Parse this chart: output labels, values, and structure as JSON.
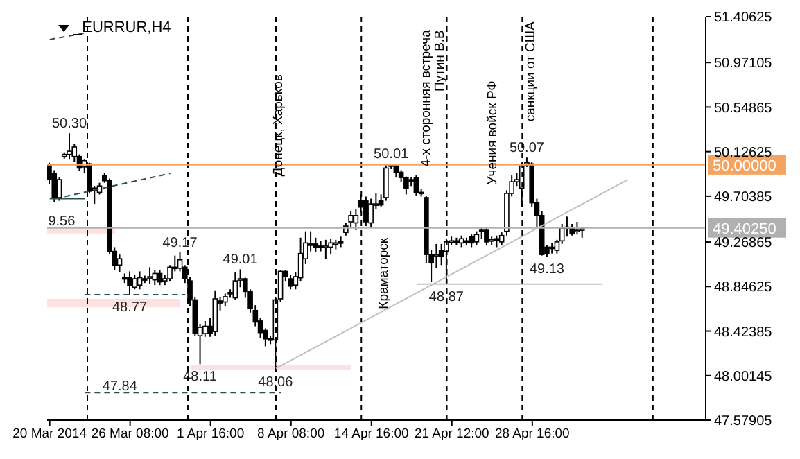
{
  "chart_data": {
    "type": "candlestick",
    "title": "_EURRUR,H4",
    "color": "#000000",
    "categories": [
      "20 Mar 2014",
      null,
      null,
      null,
      null,
      null,
      null,
      null,
      null,
      null,
      null,
      null,
      null,
      null,
      null,
      null,
      "26 Mar 08:00",
      null,
      null,
      null,
      null,
      null,
      null,
      null,
      null,
      null,
      null,
      null,
      null,
      null,
      null,
      null,
      "1 Apr 16:00",
      null,
      null,
      null,
      null,
      null,
      null,
      null,
      null,
      null,
      null,
      null,
      null,
      null,
      null,
      null,
      "8 Apr 08:00",
      null,
      null,
      null,
      null,
      null,
      null,
      null,
      null,
      null,
      null,
      null,
      null,
      null,
      null,
      null,
      "14 Apr 16:00",
      null,
      null,
      null,
      null,
      null,
      null,
      null,
      null,
      null,
      null,
      null,
      null,
      null,
      null,
      null,
      "21 Apr 12:00",
      null,
      null,
      null,
      null,
      null,
      null,
      null,
      null,
      null,
      null,
      null,
      null,
      null,
      null,
      null,
      "28 Apr 16:00",
      null,
      null,
      null,
      null,
      null,
      null,
      null,
      null,
      null,
      null,
      null,
      null,
      null,
      null,
      null,
      null,
      null,
      null,
      null,
      null,
      null,
      null,
      null,
      null,
      null,
      null,
      null,
      null,
      null,
      null,
      null,
      null,
      null,
      null
    ],
    "ohlc": [
      [
        50.0,
        50.02,
        49.82,
        49.86
      ],
      [
        49.92,
        49.95,
        49.65,
        49.69
      ],
      [
        49.69,
        49.88,
        49.66,
        49.86
      ],
      [
        50.08,
        50.12,
        50.06,
        50.1
      ],
      [
        50.1,
        50.3,
        50.05,
        50.13
      ],
      [
        50.08,
        50.2,
        50.03,
        50.17
      ],
      [
        50.08,
        50.1,
        49.94,
        49.97
      ],
      [
        49.98,
        50.05,
        49.92,
        50.04
      ],
      [
        50.01,
        50.02,
        49.73,
        49.75
      ],
      [
        49.76,
        49.8,
        49.63,
        49.78
      ],
      [
        49.74,
        49.83,
        49.72,
        49.8
      ],
      [
        49.9,
        49.92,
        49.83,
        49.85
      ],
      [
        49.85,
        49.87,
        49.15,
        49.18
      ],
      [
        49.18,
        49.22,
        49.0,
        49.05
      ],
      [
        49.05,
        49.15,
        48.98,
        49.11
      ],
      [
        48.93,
        48.97,
        48.88,
        48.92
      ],
      [
        48.93,
        48.99,
        48.77,
        48.86
      ],
      [
        48.84,
        48.96,
        48.82,
        48.92
      ],
      [
        48.86,
        48.99,
        48.82,
        48.93
      ],
      [
        48.92,
        48.95,
        48.88,
        48.91
      ],
      [
        48.93,
        49.03,
        48.87,
        48.94
      ],
      [
        48.91,
        49.0,
        48.86,
        48.97
      ],
      [
        48.97,
        49.0,
        48.86,
        48.89
      ],
      [
        48.9,
        48.96,
        48.86,
        48.92
      ],
      [
        48.92,
        49.05,
        48.9,
        49.03
      ],
      [
        49.02,
        49.14,
        48.99,
        49.03
      ],
      [
        49.02,
        49.17,
        48.99,
        49.1
      ],
      [
        49.03,
        49.05,
        48.88,
        48.92
      ],
      [
        48.9,
        48.94,
        48.66,
        48.72
      ],
      [
        48.72,
        48.75,
        48.38,
        48.4
      ],
      [
        48.38,
        48.49,
        48.11,
        48.46
      ],
      [
        48.4,
        48.52,
        48.37,
        48.47
      ],
      [
        48.47,
        48.55,
        48.37,
        48.4
      ],
      [
        48.42,
        48.81,
        48.38,
        48.73
      ],
      [
        48.71,
        48.75,
        48.62,
        48.69
      ],
      [
        48.7,
        48.78,
        48.66,
        48.75
      ],
      [
        48.78,
        48.82,
        48.74,
        48.79
      ],
      [
        48.74,
        48.98,
        48.72,
        48.9
      ],
      [
        48.91,
        49.01,
        48.84,
        48.92
      ],
      [
        48.92,
        48.93,
        48.74,
        48.8
      ],
      [
        48.8,
        48.82,
        48.6,
        48.64
      ],
      [
        48.62,
        48.67,
        48.47,
        48.51
      ],
      [
        48.52,
        48.55,
        48.36,
        48.41
      ],
      [
        48.43,
        48.45,
        48.28,
        48.35
      ],
      [
        48.35,
        48.38,
        48.3,
        48.34
      ],
      [
        48.34,
        48.75,
        48.06,
        48.72
      ],
      [
        48.73,
        49.0,
        48.7,
        48.99
      ],
      [
        48.99,
        49.0,
        48.9,
        48.94
      ],
      [
        48.92,
        48.96,
        48.82,
        48.85
      ],
      [
        48.86,
        48.98,
        48.82,
        48.94
      ],
      [
        48.93,
        49.31,
        48.9,
        49.16
      ],
      [
        49.11,
        49.37,
        49.06,
        49.26
      ],
      [
        49.25,
        49.37,
        49.18,
        49.24
      ],
      [
        49.25,
        49.31,
        49.17,
        49.22
      ],
      [
        49.23,
        49.28,
        49.18,
        49.22
      ],
      [
        49.22,
        49.29,
        49.11,
        49.23
      ],
      [
        49.22,
        49.3,
        49.15,
        49.26
      ],
      [
        49.25,
        49.29,
        49.2,
        49.26
      ],
      [
        49.27,
        49.32,
        49.22,
        49.26
      ],
      [
        49.36,
        49.45,
        49.33,
        49.42
      ],
      [
        49.46,
        49.56,
        49.4,
        49.52
      ],
      [
        49.45,
        49.58,
        49.38,
        49.52
      ],
      [
        49.66,
        49.72,
        49.55,
        49.6
      ],
      [
        49.66,
        49.7,
        49.42,
        49.46
      ],
      [
        49.45,
        49.68,
        49.4,
        49.63
      ],
      [
        49.62,
        49.73,
        49.58,
        49.63
      ],
      [
        49.66,
        49.72,
        49.6,
        49.62
      ],
      [
        49.69,
        50.0,
        49.66,
        49.97
      ],
      [
        49.99,
        50.01,
        49.96,
        50.0
      ],
      [
        49.99,
        50.0,
        49.88,
        49.93
      ],
      [
        49.93,
        49.95,
        49.84,
        49.88
      ],
      [
        49.88,
        49.89,
        49.72,
        49.78
      ],
      [
        49.86,
        49.88,
        49.8,
        49.85
      ],
      [
        49.88,
        49.9,
        49.71,
        49.74
      ],
      [
        49.74,
        49.77,
        49.7,
        49.73
      ],
      [
        49.69,
        49.71,
        49.07,
        49.15
      ],
      [
        49.15,
        49.19,
        48.89,
        49.07
      ],
      [
        49.14,
        49.25,
        49.02,
        49.15
      ],
      [
        49.19,
        49.25,
        49.05,
        49.13
      ],
      [
        49.18,
        49.3,
        48.87,
        49.27
      ],
      [
        49.27,
        49.32,
        49.24,
        49.28
      ],
      [
        49.28,
        49.31,
        49.24,
        49.27
      ],
      [
        49.26,
        49.33,
        49.22,
        49.3
      ],
      [
        49.28,
        49.31,
        49.24,
        49.27
      ],
      [
        49.32,
        49.34,
        49.22,
        49.26
      ],
      [
        49.27,
        49.37,
        49.24,
        49.34
      ],
      [
        49.38,
        49.4,
        49.3,
        49.37
      ],
      [
        49.38,
        49.4,
        49.24,
        49.27
      ],
      [
        49.28,
        49.32,
        49.24,
        49.29
      ],
      [
        49.3,
        49.33,
        49.22,
        49.29
      ],
      [
        49.27,
        49.36,
        49.24,
        49.33
      ],
      [
        49.37,
        49.76,
        49.33,
        49.73
      ],
      [
        49.73,
        49.9,
        49.7,
        49.84
      ],
      [
        49.84,
        49.92,
        49.8,
        49.86
      ],
      [
        49.78,
        50.02,
        49.6,
        49.99
      ],
      [
        50.0,
        50.07,
        49.98,
        50.02
      ],
      [
        50.01,
        50.03,
        49.6,
        49.64
      ],
      [
        49.64,
        49.68,
        49.4,
        49.52
      ],
      [
        49.52,
        49.56,
        49.14,
        49.15
      ],
      [
        49.22,
        49.24,
        49.13,
        49.16
      ],
      [
        49.21,
        49.26,
        49.16,
        49.22
      ],
      [
        49.19,
        49.29,
        49.16,
        49.27
      ],
      [
        49.28,
        49.44,
        49.25,
        49.4
      ],
      [
        49.4,
        49.51,
        49.32,
        49.41
      ],
      [
        49.4,
        49.44,
        49.33,
        49.35
      ],
      [
        49.37,
        49.46,
        49.34,
        49.38
      ],
      [
        49.38,
        49.41,
        49.31,
        49.4
      ],
      null,
      null,
      null,
      null,
      null,
      null,
      null,
      null,
      null,
      null,
      null,
      null,
      null,
      null,
      null,
      null,
      null,
      null,
      null,
      null,
      null,
      null,
      null,
      null
    ],
    "value_labels": [
      null,
      null,
      null,
      null,
      "50.30",
      null,
      null,
      null,
      null,
      null,
      null,
      null,
      null,
      null,
      null,
      null,
      "48.77",
      null,
      null,
      null,
      null,
      null,
      null,
      null,
      null,
      null,
      "49.17",
      null,
      null,
      null,
      "48.11",
      null,
      null,
      null,
      null,
      null,
      null,
      null,
      "49.01",
      null,
      null,
      null,
      null,
      null,
      null,
      "48.06",
      null,
      null,
      null,
      null,
      null,
      null,
      null,
      null,
      null,
      null,
      null,
      null,
      null,
      null,
      null,
      null,
      null,
      null,
      null,
      null,
      null,
      null,
      "50.01",
      null,
      null,
      null,
      null,
      null,
      null,
      null,
      null,
      null,
      null,
      "48.87",
      null,
      null,
      null,
      null,
      null,
      null,
      null,
      null,
      null,
      null,
      null,
      null,
      null,
      null,
      null,
      "50.07",
      null,
      null,
      null,
      "49.13",
      null,
      null,
      null,
      null,
      null,
      null,
      null,
      null,
      null,
      null,
      null,
      null,
      null,
      null,
      null,
      null,
      null,
      null,
      null,
      null,
      null,
      null,
      null,
      null,
      null,
      null,
      null,
      null,
      null,
      null,
      null
    ],
    "series": [
      {
        "type": "line",
        "color": "#c0c0c0",
        "values": [
          null,
          null,
          null,
          null,
          null,
          null,
          null,
          null,
          null,
          null,
          null,
          null,
          null,
          null,
          null,
          null,
          null,
          null,
          null,
          null,
          null,
          null,
          null,
          null,
          null,
          null,
          null,
          null,
          null,
          null,
          null,
          null,
          null,
          null,
          null,
          null,
          null,
          null,
          null,
          null,
          null,
          null,
          null,
          null,
          null,
          48.07,
          null,
          null,
          null,
          null,
          null,
          null,
          null,
          null,
          null,
          null,
          null,
          null,
          null,
          null,
          null,
          null,
          null,
          null,
          null,
          null,
          null,
          null,
          null,
          null,
          null,
          null,
          null,
          null,
          null,
          null,
          null,
          null,
          null,
          null,
          null,
          null,
          null,
          null,
          null,
          null,
          null,
          null,
          null,
          null,
          null,
          null,
          null,
          null,
          null,
          null,
          null,
          null,
          null,
          null,
          null,
          null,
          null,
          null,
          null,
          null,
          null,
          null,
          null,
          null,
          null,
          null,
          null,
          null,
          null,
          49.86,
          null,
          null,
          null,
          null,
          null,
          null,
          null,
          null,
          null,
          null,
          null,
          null,
          null,
          null,
          null
        ]
      },
      {
        "type": "line",
        "color": "#2f4f4f",
        "line_style": "dashed",
        "values": [
          null,
          null,
          null,
          49.7,
          null,
          null,
          null,
          null,
          null,
          null,
          null,
          null,
          null,
          null,
          null,
          null,
          null,
          null,
          null,
          null,
          null,
          null,
          null,
          null,
          49.92,
          null,
          null,
          null,
          null,
          null,
          null,
          null,
          null,
          null,
          null,
          null,
          null,
          null,
          null,
          null,
          null,
          null,
          null,
          null,
          null,
          null,
          null,
          null,
          null,
          null,
          null,
          null,
          null,
          null,
          null,
          null,
          null,
          null,
          null,
          null,
          null,
          null,
          null,
          null,
          null,
          null,
          null,
          null,
          null,
          null,
          null,
          null,
          null,
          null,
          null,
          null,
          null,
          null,
          null,
          null,
          null,
          null,
          null,
          null,
          null,
          null,
          null,
          null,
          null,
          null,
          null,
          null,
          null,
          null,
          null,
          null,
          null,
          null,
          null,
          null,
          null,
          null,
          null,
          null,
          null,
          null,
          null,
          null,
          null,
          null,
          null,
          null,
          null,
          null,
          null,
          null,
          null,
          null,
          null,
          null,
          null,
          null,
          null,
          null,
          null,
          null,
          null,
          null,
          null,
          null,
          null
        ]
      },
      {
        "type": "line",
        "color": "#2f4f4f",
        "line_style": "dashed",
        "values": [
          51.19,
          null,
          null,
          null,
          null,
          null,
          null,
          51.25,
          null,
          null,
          null,
          null,
          null,
          null,
          null,
          null,
          null,
          null,
          null,
          null,
          null,
          null,
          null,
          null,
          null,
          null,
          null,
          null,
          null,
          null,
          null,
          null,
          null,
          null,
          null,
          null,
          null,
          null,
          null,
          null,
          null,
          null,
          null,
          null,
          null,
          null,
          null,
          null,
          null,
          null,
          null,
          null,
          null,
          null,
          null,
          null,
          null,
          null,
          null,
          null,
          null,
          null,
          null,
          null,
          null,
          null,
          null,
          null,
          null,
          null,
          null,
          null,
          null,
          null,
          null,
          null,
          null,
          null,
          null,
          null,
          null,
          null,
          null,
          null,
          null,
          null,
          null,
          null,
          null,
          null,
          null,
          null,
          null,
          null,
          null,
          null,
          null,
          null,
          null,
          null,
          null,
          null,
          null,
          null,
          null,
          null,
          null,
          null,
          null,
          null,
          null,
          null,
          null,
          null,
          null,
          null,
          null,
          null,
          null,
          null,
          null,
          null,
          null,
          null,
          null,
          null,
          null,
          null,
          null,
          null,
          null
        ]
      },
      {
        "type": "line",
        "color": "#2f4f4f",
        "line_style": "solid",
        "values": [
          49.68,
          null,
          null,
          null,
          null,
          null,
          null,
          49.68,
          null,
          null,
          null,
          null,
          null,
          null,
          null,
          null,
          null,
          null,
          null,
          null,
          null,
          null,
          null,
          null,
          null,
          null,
          null,
          null,
          null,
          null,
          null,
          null,
          null,
          null,
          null,
          null,
          null,
          null,
          null,
          null,
          null,
          null,
          null,
          null,
          null,
          null,
          null,
          null,
          null,
          null,
          null,
          null,
          null,
          null,
          null,
          null,
          null,
          null,
          null,
          null,
          null,
          null,
          null,
          null,
          null,
          null,
          null,
          null,
          null,
          null,
          null,
          null,
          null,
          null,
          null,
          null,
          null,
          null,
          null,
          null,
          null,
          null,
          null,
          null,
          null,
          null,
          null,
          null,
          null,
          null,
          null,
          null,
          null,
          null,
          null,
          null,
          null,
          null,
          null,
          null,
          null,
          null,
          null,
          null,
          null,
          null,
          null,
          null,
          null,
          null,
          null,
          null,
          null,
          null,
          null,
          null,
          null,
          null,
          null,
          null,
          null,
          null,
          null,
          null,
          null,
          null,
          null,
          null,
          null,
          null,
          null
        ]
      },
      {
        "type": "line",
        "color": "#2f4f4f",
        "line_style": "dashed",
        "values": [
          null,
          null,
          null,
          null,
          null,
          null,
          null,
          48.77,
          null,
          null,
          null,
          null,
          null,
          null,
          null,
          null,
          null,
          null,
          null,
          null,
          null,
          null,
          null,
          null,
          null,
          null,
          null,
          48.77,
          null,
          null,
          null,
          null,
          null,
          null,
          null,
          null,
          null,
          null,
          null,
          null,
          null,
          null,
          null,
          null,
          null,
          null,
          null,
          null,
          null,
          null,
          null,
          null,
          null,
          null,
          null,
          null,
          null,
          null,
          null,
          null,
          null,
          null,
          null,
          null,
          null,
          null,
          null,
          null,
          null,
          null,
          null,
          null,
          null,
          null,
          null,
          null,
          null,
          null,
          null,
          null,
          null,
          null,
          null,
          null,
          null,
          null,
          null,
          null,
          null,
          null,
          null,
          null,
          null,
          null,
          null,
          null,
          null,
          null,
          null,
          null,
          null,
          null,
          null,
          null,
          null,
          null,
          null,
          null,
          null,
          null,
          null,
          null,
          null,
          null,
          null,
          null,
          null,
          null,
          null,
          null,
          null,
          null,
          null,
          null,
          null,
          null,
          null,
          null,
          null,
          null,
          null
        ]
      },
      {
        "type": "line",
        "color": "#2f4f4f",
        "line_style": "dashed",
        "values": [
          null,
          null,
          null,
          null,
          null,
          null,
          null,
          47.84,
          null,
          null,
          null,
          null,
          null,
          null,
          null,
          null,
          null,
          null,
          null,
          null,
          null,
          null,
          null,
          null,
          null,
          null,
          null,
          null,
          null,
          null,
          null,
          null,
          null,
          null,
          null,
          null,
          null,
          null,
          null,
          null,
          null,
          null,
          null,
          null,
          null,
          null,
          47.84,
          null,
          null,
          null,
          null,
          null,
          null,
          null,
          null,
          null,
          null,
          null,
          null,
          null,
          null,
          null,
          null,
          null,
          null,
          null,
          null,
          null,
          null,
          null,
          null,
          null,
          null,
          null,
          null,
          null,
          null,
          null,
          null,
          null,
          null,
          null,
          null,
          null,
          null,
          null,
          null,
          null,
          null,
          null,
          null,
          null,
          null,
          null,
          null,
          null,
          null,
          null,
          null,
          null,
          null,
          null,
          null,
          null,
          null,
          null,
          null,
          null,
          null,
          null,
          null,
          null,
          null,
          null,
          null,
          null,
          null,
          null,
          null,
          null,
          null,
          null,
          null,
          null,
          null,
          null,
          null,
          null,
          null,
          null,
          null
        ]
      },
      {
        "type": "line",
        "color": "#c0c0c0",
        "values": [
          null,
          null,
          null,
          null,
          null,
          null,
          null,
          null,
          null,
          null,
          null,
          null,
          null,
          null,
          null,
          null,
          null,
          null,
          null,
          null,
          null,
          null,
          null,
          null,
          null,
          null,
          null,
          null,
          null,
          null,
          null,
          null,
          null,
          null,
          null,
          null,
          null,
          null,
          null,
          null,
          null,
          null,
          null,
          null,
          null,
          null,
          null,
          null,
          null,
          null,
          null,
          null,
          null,
          null,
          null,
          null,
          null,
          null,
          null,
          null,
          null,
          null,
          null,
          null,
          null,
          null,
          null,
          null,
          null,
          null,
          null,
          null,
          null,
          48.87,
          null,
          null,
          null,
          null,
          null,
          null,
          null,
          null,
          null,
          null,
          null,
          null,
          null,
          null,
          null,
          null,
          null,
          null,
          null,
          null,
          null,
          null,
          null,
          null,
          null,
          null,
          null,
          null,
          null,
          null,
          null,
          null,
          null,
          null,
          null,
          null,
          48.87,
          null,
          null,
          null,
          null,
          null,
          null,
          null,
          null,
          null,
          null,
          null,
          null,
          null,
          null,
          null,
          null,
          null,
          null,
          null,
          null
        ]
      }
    ],
    "ref_lines": [
      {
        "axis": "y",
        "value": 50.0,
        "label": "50.00000",
        "color": "#f4a460"
      },
      {
        "axis": "y",
        "value": 49.4025,
        "label": "49.40250",
        "color": "#b0b0b0"
      }
    ],
    "annotations": [
      "47.84",
      "9.56",
      "Донецк, Харьков",
      "Краматорск",
      "4-х сторонняя встреча\nПутин В.В",
      "Учения войск РФ",
      "санкции от США"
    ],
    "ylim": [
      47.57905,
      51.40625
    ],
    "yticks": [
      47.57905,
      48.00145,
      48.42385,
      48.84625,
      49.26865,
      49.70385,
      50.12625,
      50.54865,
      50.97105,
      51.40625
    ]
  }
}
